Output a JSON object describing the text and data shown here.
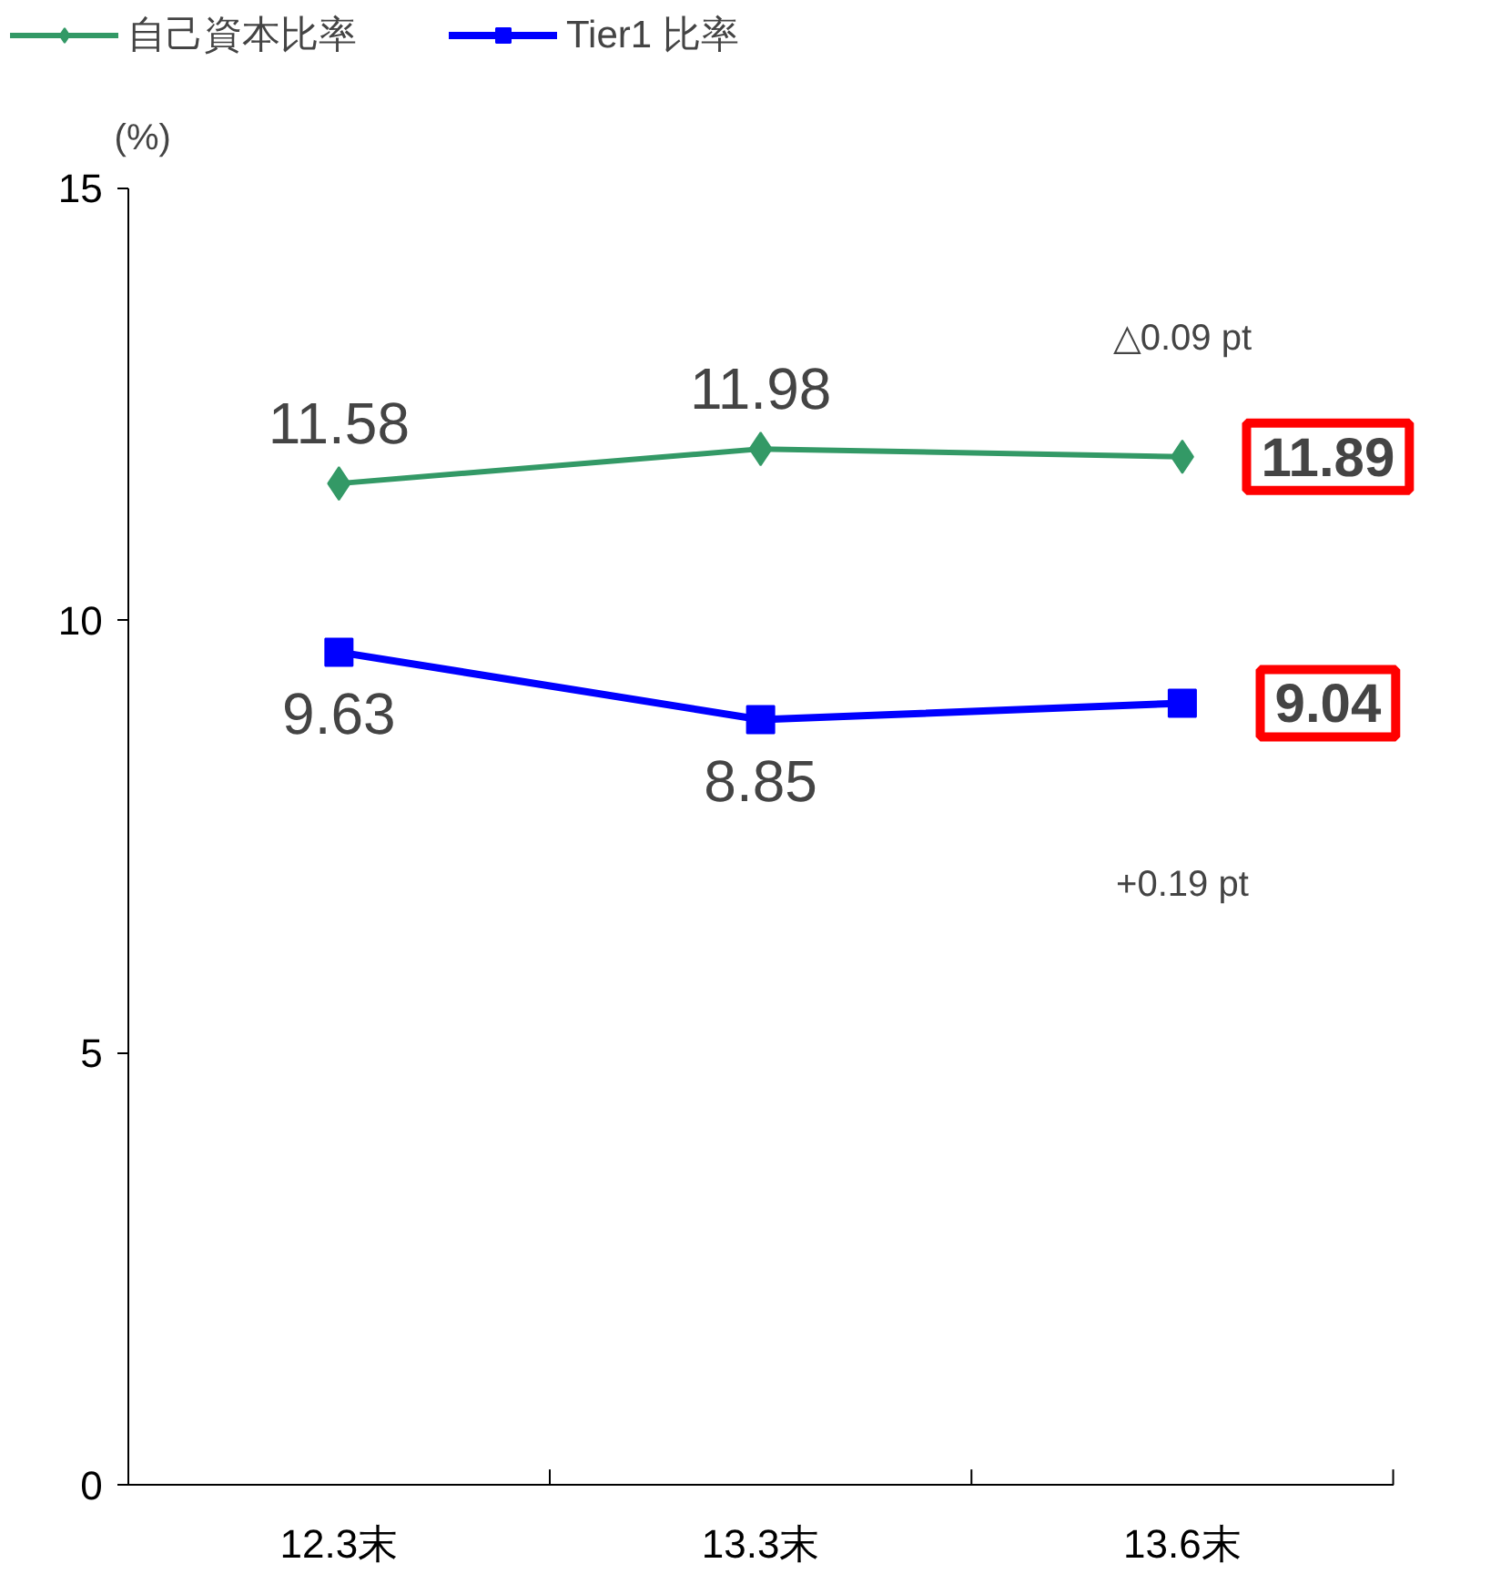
{
  "chart_data": {
    "type": "line",
    "ylabel": "(%)",
    "categories": [
      "12.3末",
      "13.3末",
      "13.6末"
    ],
    "series": [
      {
        "name": "自己資本比率",
        "color": "#339966",
        "marker": "diamond",
        "values": [
          11.58,
          11.98,
          11.89
        ]
      },
      {
        "name": "Tier1 比率",
        "color": "#0000ff",
        "marker": "square",
        "values": [
          9.63,
          8.85,
          9.04
        ]
      }
    ],
    "ylim": [
      0,
      15
    ],
    "yticks": [
      0,
      5,
      10,
      15
    ],
    "grid": false,
    "legend": "top left",
    "data_labels": true,
    "annotations": [
      "△0.09 pt",
      "+0.19 pt"
    ]
  }
}
